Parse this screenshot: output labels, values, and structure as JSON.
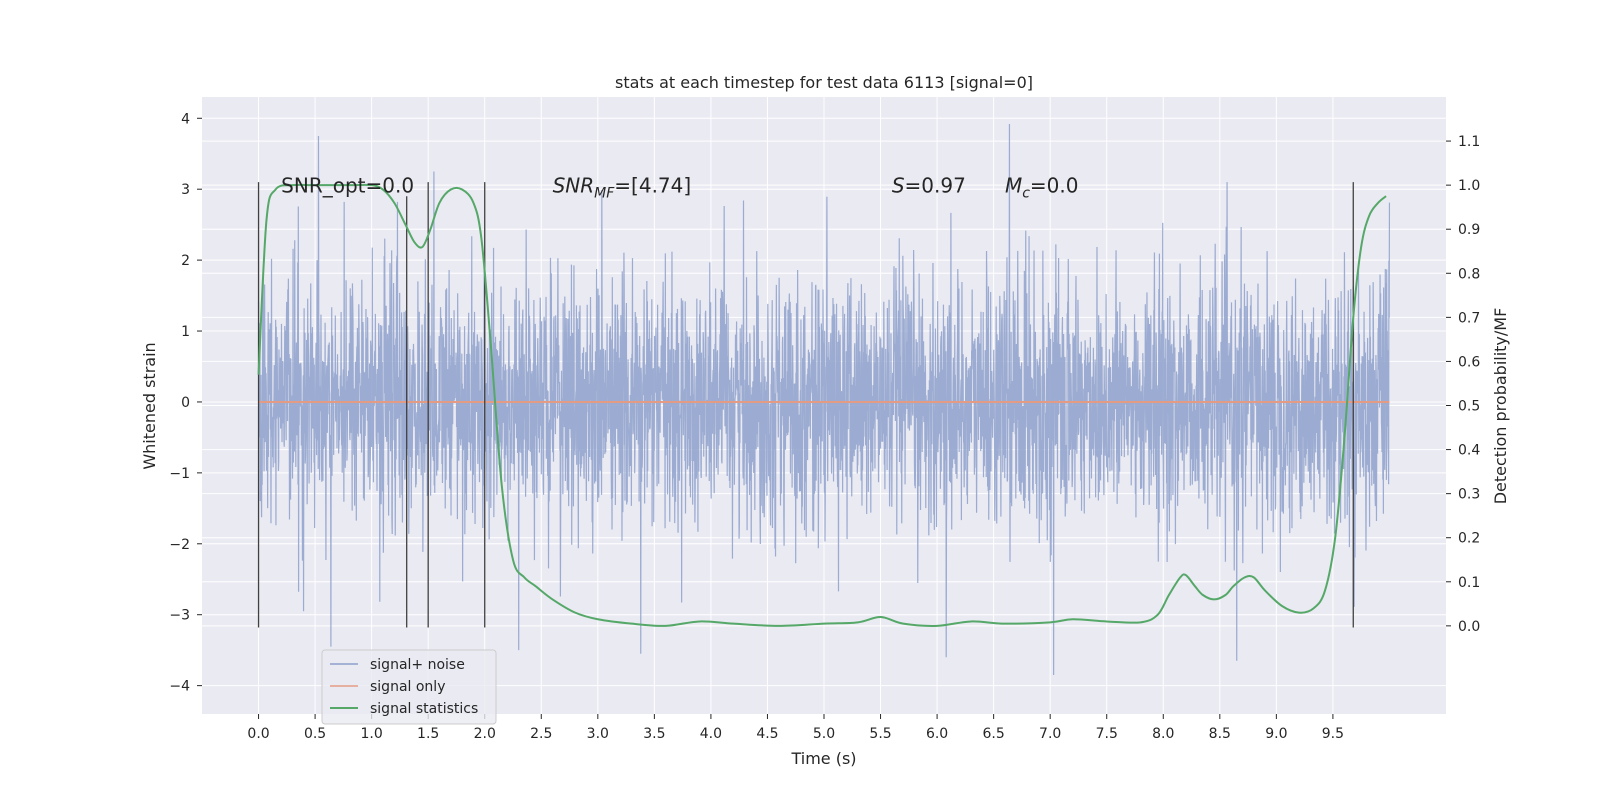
{
  "chart_data": {
    "type": "line",
    "title": "stats at each timestep for test data 6113 [signal=0]",
    "xlabel": "Time (s)",
    "ylabel_left": "Whitened strain",
    "ylabel_right": "Detection probability/MF",
    "xlim": [
      -0.5,
      10.5
    ],
    "ylim_left": [
      -4.4,
      4.3
    ],
    "ylim_right": [
      -0.2,
      1.2
    ],
    "x_ticks": [
      "0.0",
      "0.5",
      "1.0",
      "1.5",
      "2.0",
      "2.5",
      "3.0",
      "3.5",
      "4.0",
      "4.5",
      "5.0",
      "5.5",
      "6.0",
      "6.5",
      "7.0",
      "7.5",
      "8.0",
      "8.5",
      "9.0",
      "9.5"
    ],
    "y_ticks_left": [
      "−4",
      "−3",
      "−2",
      "−1",
      "0",
      "1",
      "2",
      "3",
      "4"
    ],
    "y_ticks_right": [
      "0.0",
      "0.1",
      "0.2",
      "0.3",
      "0.4",
      "0.5",
      "0.6",
      "0.7",
      "0.8",
      "0.9",
      "1.0",
      "1.1"
    ],
    "grid": true,
    "legend_position": "lower-left",
    "series": [
      {
        "name": "signal+ noise",
        "color": "#8da0cb",
        "axis": "left",
        "description_kind": "dense noise",
        "x_range": [
          0.0,
          10.0
        ],
        "typical_extent": [
          -2.2,
          2.4
        ],
        "peaks": [
          {
            "x": 0.53,
            "y": 3.75
          },
          {
            "x": 1.55,
            "y": 3.25
          },
          {
            "x": 6.64,
            "y": 3.92
          },
          {
            "x": 0.64,
            "y": -3.45
          },
          {
            "x": 2.3,
            "y": -3.5
          },
          {
            "x": 3.38,
            "y": -3.55
          },
          {
            "x": 6.08,
            "y": -3.6
          },
          {
            "x": 7.03,
            "y": -3.85
          },
          {
            "x": 8.65,
            "y": -3.65
          }
        ]
      },
      {
        "name": "signal only",
        "color": "#e49b84",
        "axis": "left",
        "x": [
          0.0,
          10.0
        ],
        "y": [
          0.0,
          0.0
        ]
      },
      {
        "name": "signal statistics",
        "color": "#55a868",
        "axis": "right",
        "x": [
          0.0,
          0.07,
          0.15,
          0.3,
          0.5,
          0.8,
          1.0,
          1.1,
          1.2,
          1.3,
          1.38,
          1.45,
          1.52,
          1.6,
          1.7,
          1.8,
          1.9,
          1.97,
          2.05,
          2.15,
          2.25,
          2.35,
          2.45,
          2.6,
          2.8,
          3.0,
          3.3,
          3.6,
          3.9,
          4.2,
          4.6,
          5.0,
          5.3,
          5.5,
          5.7,
          6.0,
          6.3,
          6.6,
          7.0,
          7.2,
          7.5,
          7.8,
          7.95,
          8.05,
          8.15,
          8.2,
          8.28,
          8.35,
          8.45,
          8.55,
          8.62,
          8.72,
          8.8,
          8.9,
          9.05,
          9.2,
          9.33,
          9.43,
          9.52,
          9.6,
          9.68,
          9.75,
          9.82,
          9.9,
          9.97
        ],
        "y": [
          0.57,
          0.92,
          0.99,
          1.0,
          1.0,
          1.0,
          1.0,
          0.99,
          0.96,
          0.91,
          0.87,
          0.86,
          0.9,
          0.96,
          0.99,
          0.99,
          0.96,
          0.88,
          0.65,
          0.32,
          0.15,
          0.11,
          0.09,
          0.06,
          0.03,
          0.015,
          0.005,
          0.0,
          0.01,
          0.005,
          0.0,
          0.005,
          0.008,
          0.02,
          0.005,
          0.0,
          0.01,
          0.005,
          0.008,
          0.015,
          0.01,
          0.008,
          0.025,
          0.07,
          0.11,
          0.115,
          0.09,
          0.07,
          0.06,
          0.07,
          0.09,
          0.11,
          0.11,
          0.08,
          0.045,
          0.03,
          0.04,
          0.08,
          0.2,
          0.42,
          0.7,
          0.86,
          0.93,
          0.96,
          0.975
        ]
      }
    ],
    "vertical_lines": [
      {
        "x": 0.0,
        "y0": -3.18,
        "y1": 3.1
      },
      {
        "x": 1.31,
        "y0": -3.18,
        "y1": 2.9
      },
      {
        "x": 1.5,
        "y0": -3.18,
        "y1": 3.1
      },
      {
        "x": 2.0,
        "y0": -3.18,
        "y1": 3.1
      },
      {
        "x": 9.68,
        "y0": -3.18,
        "y1": 3.1
      }
    ],
    "annotations": [
      {
        "id": "snr-opt",
        "text": "SNR_opt=0.0",
        "x": 0.2,
        "y": 3.05
      },
      {
        "id": "snr-mf",
        "text_italic": "SNR",
        "sub": "MF",
        "text_after": "=[4.74]",
        "x": 2.6,
        "y": 3.05
      },
      {
        "id": "s-stat",
        "text_italic": "S",
        "text_after": "=0.97",
        "x": 5.6,
        "y": 3.05
      },
      {
        "id": "mc",
        "text_italic": "M",
        "sub": "c",
        "text_after": "=0.0",
        "x": 6.6,
        "y": 3.05
      }
    ],
    "colors": {
      "plot_background": "#eaeaf2",
      "grid": "#ffffff",
      "vline": "#404040"
    }
  }
}
